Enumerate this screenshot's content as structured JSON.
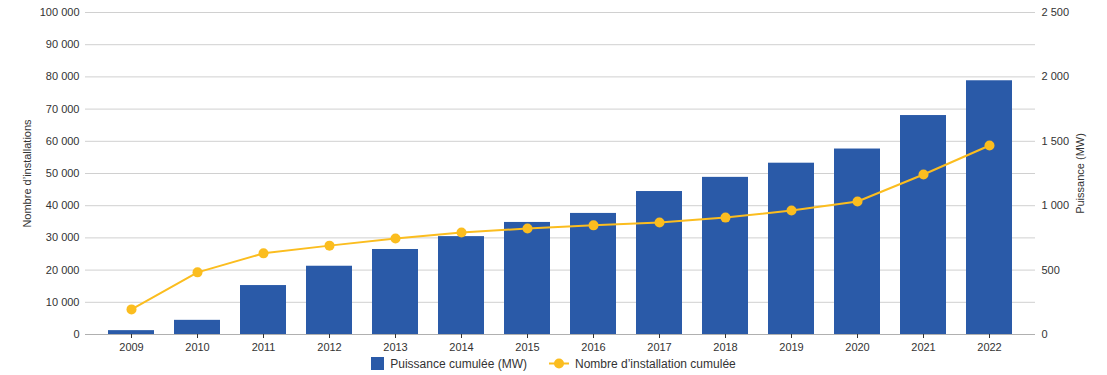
{
  "chart_data": {
    "type": "bar",
    "categories": [
      "2009",
      "2010",
      "2011",
      "2012",
      "2013",
      "2014",
      "2015",
      "2016",
      "2017",
      "2018",
      "2019",
      "2020",
      "2021",
      "2022"
    ],
    "series": [
      {
        "name": "Puissance cumulée (MW)",
        "type": "bar",
        "axis": "y2",
        "color": "#2a5aa8",
        "values": [
          30,
          110,
          380,
          530,
          660,
          760,
          870,
          940,
          1110,
          1220,
          1330,
          1440,
          1700,
          1970
        ]
      },
      {
        "name": "Nombre d’installation cumulée",
        "type": "line",
        "marker": "circle",
        "color": "#fbbd1f",
        "values": [
          7800,
          19300,
          25200,
          27600,
          29800,
          31700,
          32900,
          33900,
          34800,
          36300,
          38500,
          41300,
          49700,
          58700
        ]
      }
    ],
    "ylabel": "Nombre d’installations",
    "y2label": "Puissance (MW)",
    "ylim": [
      0,
      100000
    ],
    "yticks": [
      0,
      {
        "value": 10000,
        "label": "10 000"
      },
      {
        "value": 20000,
        "label": "20 000"
      },
      {
        "value": 30000,
        "label": "30 000"
      },
      {
        "value": 40000,
        "label": "40 000"
      },
      {
        "value": 50000,
        "label": "50 000"
      },
      {
        "value": 60000,
        "label": "60 000"
      },
      {
        "value": 70000,
        "label": "70 000"
      },
      {
        "value": 80000,
        "label": "80 000"
      },
      {
        "value": 90000,
        "label": "90 000"
      },
      {
        "value": 100000,
        "label": "100 000"
      }
    ],
    "y2lim": [
      0,
      2500
    ],
    "y2ticks": [
      0,
      500,
      {
        "value": 1000,
        "label": "1 000"
      },
      {
        "value": 1500,
        "label": "1 500"
      },
      {
        "value": 2000,
        "label": "2 000"
      },
      {
        "value": 2500,
        "label": "2 500"
      }
    ],
    "grid": true,
    "legend": "bottom"
  }
}
